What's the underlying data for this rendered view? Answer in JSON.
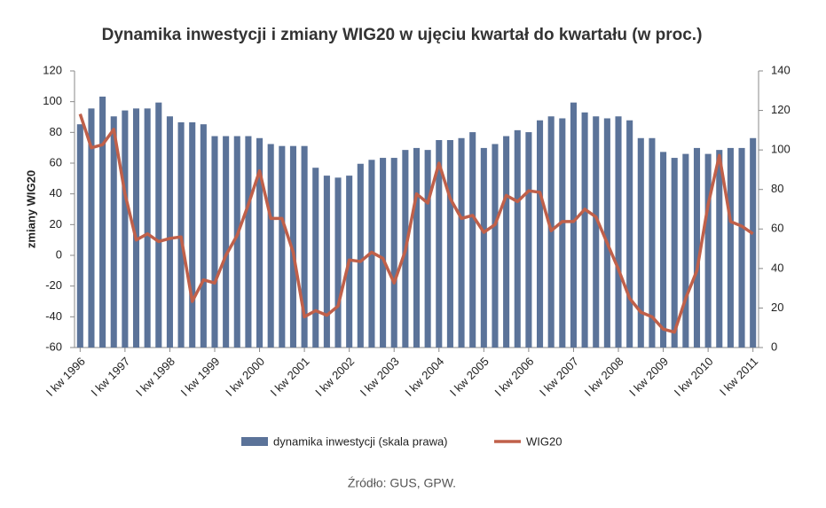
{
  "chart_data": {
    "type": "bar-line",
    "title": "Dynamika inwestycji i zmiany WIG20 w ujęciu kwartał do kwartału (w proc.)",
    "ylabel": "zmiany WIG20",
    "source": "Źródło: GUS, GPW.",
    "categories": [
      "I kw 1996",
      null,
      null,
      null,
      "I kw 1997",
      null,
      null,
      null,
      "I kw 1998",
      null,
      null,
      null,
      "I kw 1999",
      null,
      null,
      null,
      "I kw 2000",
      null,
      null,
      null,
      "I kw 2001",
      null,
      null,
      null,
      "I kw 2002",
      null,
      null,
      null,
      "I kw 2003",
      null,
      null,
      null,
      "I kw 2004",
      null,
      null,
      null,
      "I kw 2005",
      null,
      null,
      null,
      "I kw 2006",
      null,
      null,
      null,
      "I kw 2007",
      null,
      null,
      null,
      "I kw 2008",
      null,
      null,
      null,
      "I kw 2009",
      null,
      null,
      null,
      "I kw 2010",
      null,
      null,
      null,
      "I kw 2011"
    ],
    "series": [
      {
        "name": "dynamika inwestycji (skala prawa)",
        "type": "bar",
        "axis": "y2",
        "color": "#5b7399",
        "values": [
          113,
          121,
          127,
          117,
          120,
          121,
          121,
          124,
          117,
          114,
          114,
          113,
          107,
          107,
          107,
          107,
          106,
          103,
          102,
          102,
          102,
          91,
          87,
          86,
          87,
          93,
          95,
          96,
          96,
          100,
          101,
          100,
          105,
          105,
          106,
          109,
          101,
          103,
          107,
          110,
          109,
          115,
          117,
          116,
          124,
          119,
          117,
          116,
          117,
          115,
          106,
          106,
          99,
          96,
          98,
          101,
          98,
          100,
          101,
          101,
          106
        ]
      },
      {
        "name": "WIG20",
        "type": "line",
        "color": "#c0604a",
        "values": [
          92,
          70,
          72,
          82,
          40,
          10,
          14,
          9,
          11,
          12,
          -30,
          -16,
          -18,
          0,
          13,
          33,
          55,
          24,
          24,
          2,
          -40,
          -36,
          -39,
          -33,
          -3,
          -4,
          2,
          -2,
          -18,
          3,
          40,
          34,
          60,
          37,
          24,
          26,
          15,
          20,
          39,
          35,
          42,
          41,
          16,
          22,
          22,
          30,
          25,
          8,
          -9,
          -28,
          -37,
          -40,
          -48,
          -50,
          -28,
          -10,
          33,
          65,
          22,
          19,
          14
        ]
      }
    ],
    "ylim": [
      -60,
      120
    ],
    "yticks": [
      -60,
      -40,
      -20,
      0,
      20,
      40,
      60,
      80,
      100,
      120
    ],
    "y2lim": [
      0,
      140
    ],
    "y2ticks": [
      0,
      20,
      40,
      60,
      80,
      100,
      120,
      140
    ]
  }
}
